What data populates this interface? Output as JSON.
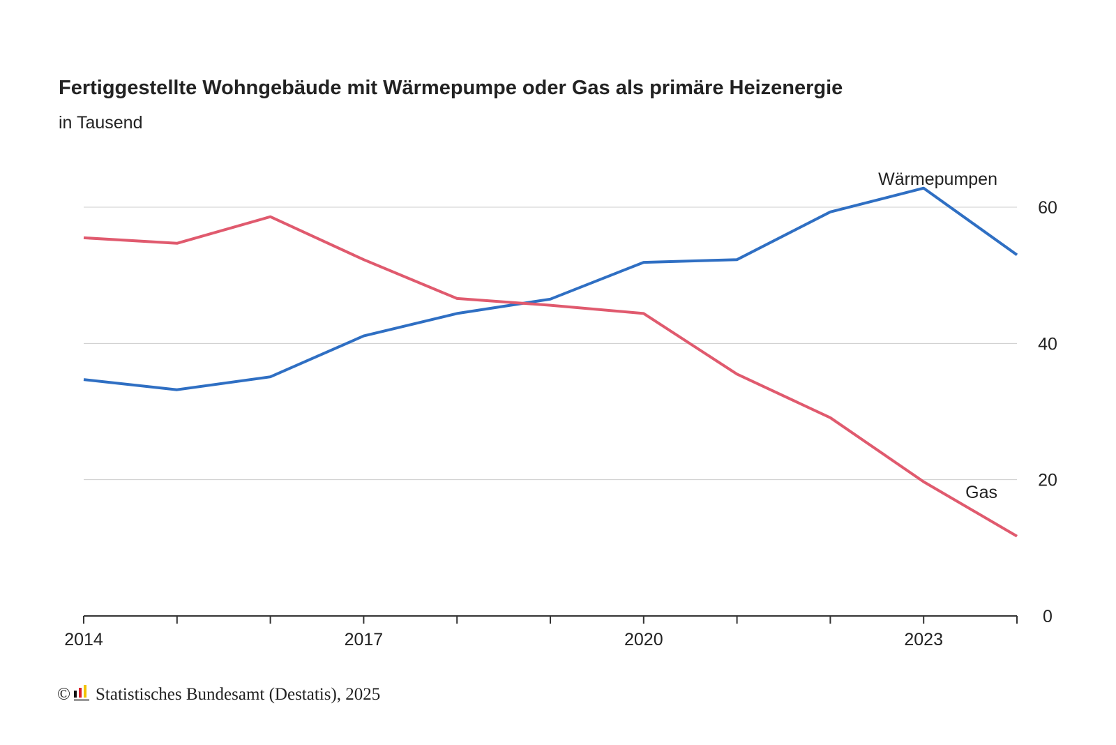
{
  "chart_data": {
    "type": "line",
    "title": "Fertiggestellte Wohngebäude mit Wärmepumpe oder Gas als primäre Heizenergie",
    "subtitle": "in Tausend",
    "x": [
      2014,
      2015,
      2016,
      2017,
      2018,
      2019,
      2020,
      2021,
      2022,
      2023,
      2024
    ],
    "x_tick_labels": [
      "2014",
      "2017",
      "2020",
      "2023"
    ],
    "x_tick_values": [
      2014,
      2017,
      2020,
      2023
    ],
    "y_ticks": [
      0,
      20,
      40,
      60
    ],
    "y_tick_labels": [
      "0",
      "20",
      "40",
      "60"
    ],
    "ylim": [
      0,
      60
    ],
    "xlim": [
      2014,
      2024
    ],
    "grid": true,
    "y_axis_position": "right",
    "series": [
      {
        "name": "Wärmepumpen",
        "color": "#2f6fc3",
        "values": [
          34.7,
          33.2,
          35.1,
          41.1,
          44.4,
          46.5,
          51.9,
          52.3,
          59.3,
          62.8,
          53.0
        ]
      },
      {
        "name": "Gas",
        "color": "#e05a6e",
        "values": [
          55.5,
          54.7,
          58.6,
          52.3,
          46.6,
          45.6,
          44.4,
          35.5,
          29.1,
          19.7,
          11.7
        ]
      }
    ],
    "series_labels": [
      {
        "text": "Wärmepumpen",
        "series": 0
      },
      {
        "text": "Gas",
        "series": 1
      }
    ]
  },
  "footer": {
    "copyright_symbol": "©",
    "source": "Statistisches Bundesamt (Destatis), 2025"
  },
  "colors": {
    "text": "#222222",
    "grid": "#cccccc",
    "axis": "#333333"
  }
}
